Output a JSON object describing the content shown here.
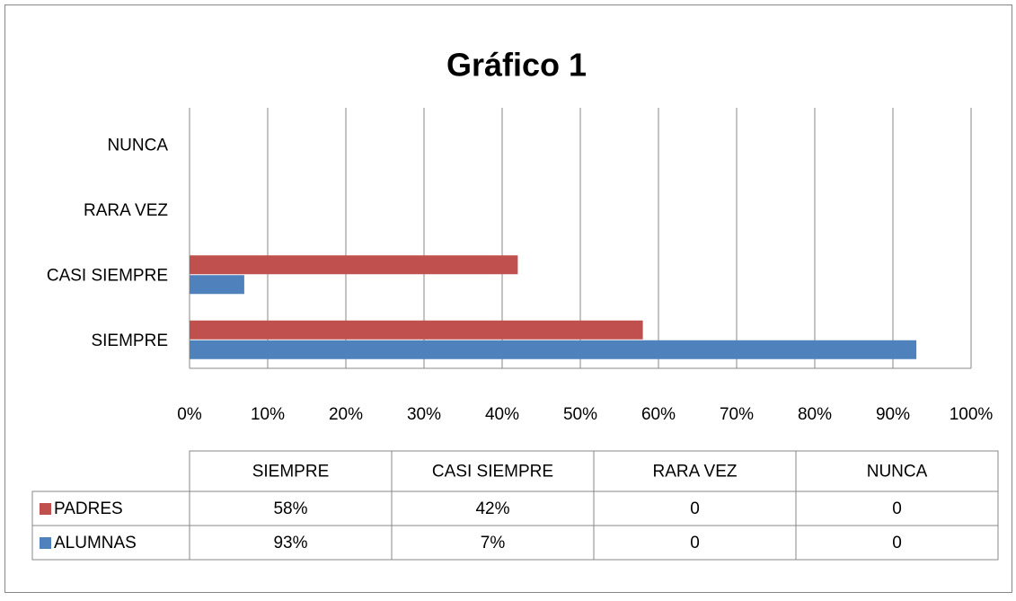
{
  "chart_data": {
    "type": "bar",
    "orientation": "horizontal",
    "title": "Gráfico 1",
    "categories": [
      "SIEMPRE",
      "CASI SIEMPRE",
      "RARA VEZ",
      "NUNCA"
    ],
    "series": [
      {
        "name": "PADRES",
        "color": "#c0504d",
        "values": [
          58,
          42,
          0,
          0
        ],
        "value_labels": [
          "58%",
          "42%",
          "0",
          "0"
        ]
      },
      {
        "name": "ALUMNAS",
        "color": "#4f81bd",
        "values": [
          93,
          7,
          0,
          0
        ],
        "value_labels": [
          "93%",
          "7%",
          "0",
          "0"
        ]
      }
    ],
    "xlim": [
      0,
      100
    ],
    "xticks": [
      {
        "value": 0,
        "label": "0%"
      },
      {
        "value": 10,
        "label": "10%"
      },
      {
        "value": 20,
        "label": "20%"
      },
      {
        "value": 30,
        "label": "30%"
      },
      {
        "value": 40,
        "label": "40%"
      },
      {
        "value": 50,
        "label": "50%"
      },
      {
        "value": 60,
        "label": "60%"
      },
      {
        "value": 70,
        "label": "70%"
      },
      {
        "value": 80,
        "label": "80%"
      },
      {
        "value": 90,
        "label": "90%"
      },
      {
        "value": 100,
        "label": "100%"
      }
    ],
    "grid": true
  }
}
